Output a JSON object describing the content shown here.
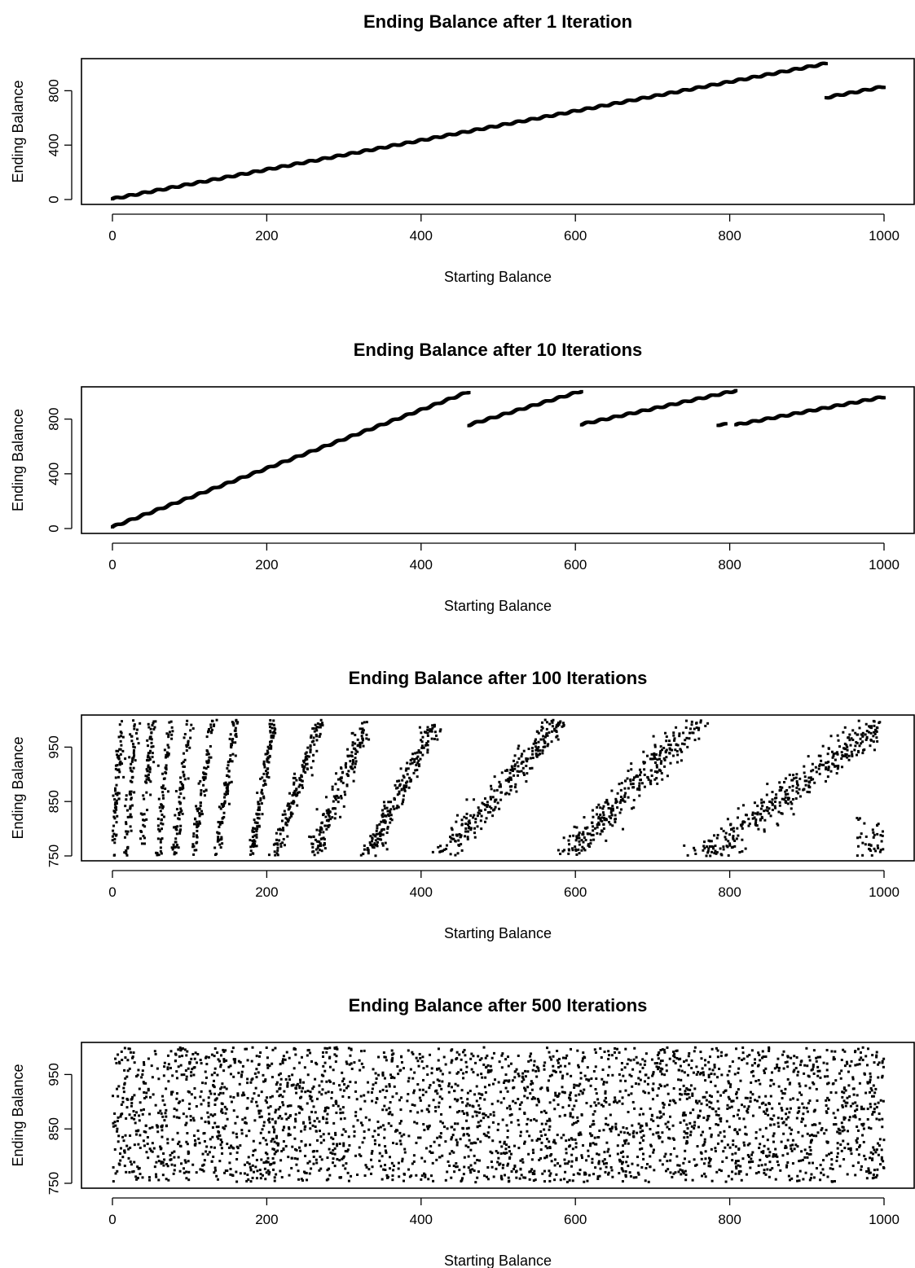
{
  "chart_data": [
    {
      "type": "scatter",
      "title": "Ending Balance after 1 Iteration",
      "xlabel": "Starting Balance",
      "ylabel": "Ending Balance",
      "xlim": [
        0,
        1000
      ],
      "ylim": [
        0,
        1000
      ],
      "xticks": [
        0,
        200,
        400,
        600,
        800,
        1000
      ],
      "yticks": [
        0,
        400,
        800
      ],
      "grid": false,
      "legend": "none",
      "pattern": {
        "kind": "linear_segments",
        "segments": [
          {
            "x_from": 0,
            "x_to": 925,
            "y_from": 5,
            "y_to": 1000
          },
          {
            "x_from": 925,
            "x_to": 1000,
            "y_from": 750,
            "y_to": 830
          }
        ]
      }
    },
    {
      "type": "scatter",
      "title": "Ending Balance after 10 Iterations",
      "xlabel": "Starting Balance",
      "ylabel": "Ending Balance",
      "xlim": [
        0,
        1000
      ],
      "ylim": [
        0,
        1000
      ],
      "xticks": [
        0,
        200,
        400,
        600,
        800,
        1000
      ],
      "yticks": [
        0,
        400,
        800
      ],
      "grid": false,
      "legend": "none",
      "pattern": {
        "kind": "linear_segments",
        "segments": [
          {
            "x_from": 0,
            "x_to": 462,
            "y_from": 12,
            "y_to": 1000
          },
          {
            "x_from": 462,
            "x_to": 608,
            "y_from": 758,
            "y_to": 1005
          },
          {
            "x_from": 608,
            "x_to": 808,
            "y_from": 762,
            "y_to": 1008
          },
          {
            "x_from": 785,
            "x_to": 795,
            "y_from": 760,
            "y_to": 760
          },
          {
            "x_from": 808,
            "x_to": 1000,
            "y_from": 758,
            "y_to": 962
          }
        ]
      }
    },
    {
      "type": "scatter",
      "title": "Ending Balance after 100 Iterations",
      "xlabel": "Starting Balance",
      "ylabel": "Ending Balance",
      "xlim": [
        0,
        1000
      ],
      "ylim": [
        750,
        1000
      ],
      "xticks": [
        0,
        200,
        400,
        600,
        800,
        1000
      ],
      "yticks": [
        750,
        850,
        950
      ],
      "grid": false,
      "legend": "none",
      "pattern": {
        "kind": "diagonal_bands",
        "y_min": 750,
        "y_max": 1000,
        "bands": [
          {
            "x_start": 0,
            "x_end": 12,
            "n": 80
          },
          {
            "x_start": 18,
            "x_end": 30,
            "n": 70
          },
          {
            "x_start": 38,
            "x_end": 52,
            "n": 70
          },
          {
            "x_start": 60,
            "x_end": 75,
            "n": 70
          },
          {
            "x_start": 80,
            "x_end": 100,
            "n": 80
          },
          {
            "x_start": 105,
            "x_end": 130,
            "n": 90
          },
          {
            "x_start": 135,
            "x_end": 160,
            "n": 100
          },
          {
            "x_start": 180,
            "x_end": 210,
            "n": 120
          },
          {
            "x_start": 210,
            "x_end": 270,
            "n": 150
          },
          {
            "x_start": 260,
            "x_end": 330,
            "n": 170
          },
          {
            "x_start": 330,
            "x_end": 420,
            "n": 200
          },
          {
            "x_start": 430,
            "x_end": 580,
            "n": 260
          },
          {
            "x_start": 590,
            "x_end": 760,
            "n": 300
          },
          {
            "x_start": 770,
            "x_end": 1000,
            "n": 360
          },
          {
            "x_start": 965,
            "x_end": 1000,
            "y_from": 750,
            "y_to": 820,
            "n": 40
          }
        ]
      }
    },
    {
      "type": "scatter",
      "title": "Ending Balance after 500 Iterations",
      "xlabel": "Starting Balance",
      "ylabel": "Ending Balance",
      "xlim": [
        0,
        1000
      ],
      "ylim": [
        750,
        1000
      ],
      "xticks": [
        0,
        200,
        400,
        600,
        800,
        1000
      ],
      "yticks": [
        750,
        850,
        950
      ],
      "grid": false,
      "legend": "none",
      "pattern": {
        "kind": "uniform_cloud",
        "x_min": 0,
        "x_max": 1000,
        "y_min": 752,
        "y_max": 1000,
        "n": 3000
      }
    }
  ]
}
